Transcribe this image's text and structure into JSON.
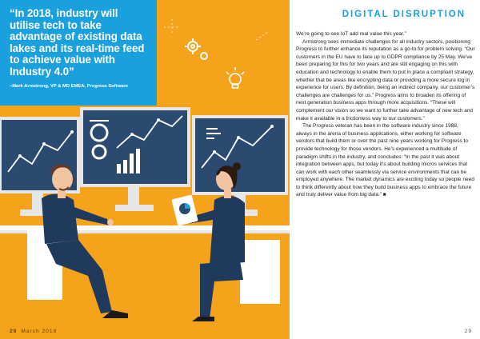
{
  "quote": {
    "text": "“In 2018, industry will utilise tech to take advantage of existing data lakes and its real-time feed to achieve value with Industry 4.0”",
    "attribution": "–Mark Armstrong, VP & MD EMEA, Progress Software"
  },
  "section_title": "DIGITAL DISRUPTION",
  "paragraphs": [
    "We’re going to see IoT add real value this year.”",
    "Armstrong sees immediate challenges for all industry sectors, positioning Progress to further enhance its reputation as a go-to for problem solving. “Our customers in the EU have to face up to GDPR compliance by 25 May. We’ve been preparing for this for two years and are still engaging on this with education and technology to enable them to put in place a compliant strategy, whether that be areas like encrypting data or providing a more secure log in experience for users. By definition, being an indirect company, our customer’s challenges are challenges for us.” Progress aims to broaden its offering of next generation business apps through more acquisitions. “These will complement our vision so we want to further take advantage of new tech and make it available in a frictionless way to our customers.”",
    "The Progress veteran has been in the software industry since 1988, always in the arena of business applications, either working for software vendors that build them or over the past nine years working for Progress to provide technology for those vendors. He’s experienced a multitude of paradigm shifts in the industry, and concludes: “In the past it was about integration between apps, but today it’s about building micros services that can work with each other seamlessly via service environments that can be employed anywhere. The market dynamics are exciting today so people need to think differently about how they build business apps to embrace the future and truly deliver value from big data.” ■"
  ],
  "footer": {
    "left_page": "28",
    "date": "March 2018",
    "right_page": "29"
  },
  "colors": {
    "accent_blue": "#1aa0dc",
    "background_orange": "#f5a31a",
    "screen_navy": "#2b4a6f"
  }
}
